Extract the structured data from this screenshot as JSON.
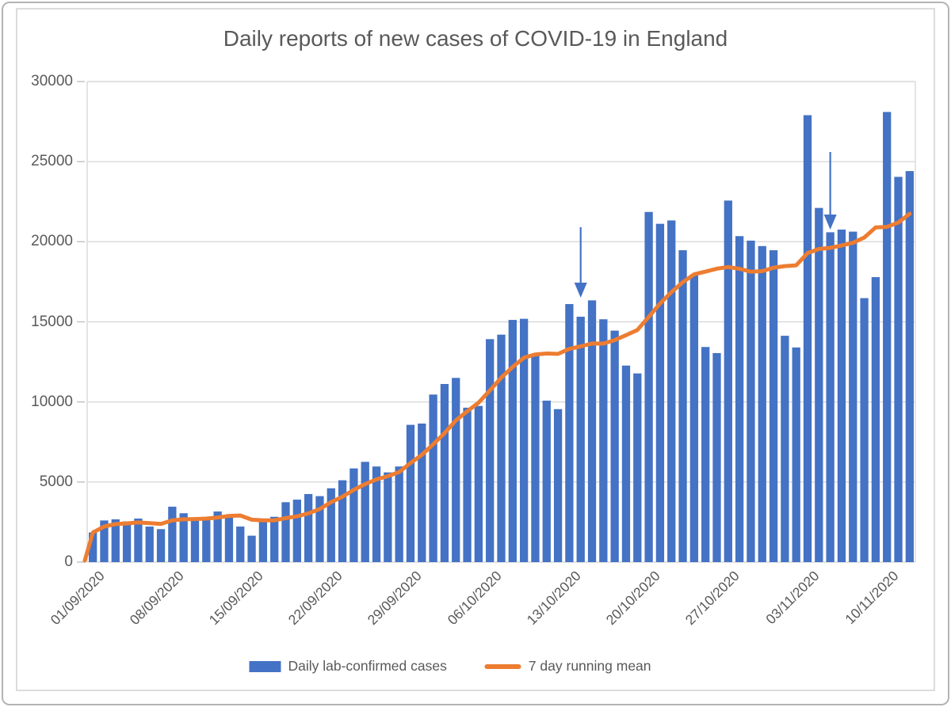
{
  "frame": {
    "outer_border_color": "#b4b4b4",
    "inner_border_color": "#dcdcdc"
  },
  "chart_data": {
    "type": "bar",
    "title": "Daily reports of new cases of COVID-19 in England",
    "xlabel": "",
    "ylabel": "",
    "ylim": [
      0,
      30000
    ],
    "y_ticks": [
      0,
      5000,
      10000,
      15000,
      20000,
      25000,
      30000
    ],
    "grid": "horizontal",
    "legend_position": "bottom",
    "x_tick_labels": [
      "01/09/2020",
      "08/09/2020",
      "15/09/2020",
      "22/09/2020",
      "29/09/2020",
      "06/10/2020",
      "13/10/2020",
      "20/10/2020",
      "27/10/2020",
      "03/11/2020",
      "10/11/2020"
    ],
    "categories": [
      "01/09/2020",
      "02/09/2020",
      "03/09/2020",
      "04/09/2020",
      "05/09/2020",
      "06/09/2020",
      "07/09/2020",
      "08/09/2020",
      "09/09/2020",
      "10/09/2020",
      "11/09/2020",
      "12/09/2020",
      "13/09/2020",
      "14/09/2020",
      "15/09/2020",
      "16/09/2020",
      "17/09/2020",
      "18/09/2020",
      "19/09/2020",
      "20/09/2020",
      "21/09/2020",
      "22/09/2020",
      "23/09/2020",
      "24/09/2020",
      "25/09/2020",
      "26/09/2020",
      "27/09/2020",
      "28/09/2020",
      "29/09/2020",
      "30/09/2020",
      "01/10/2020",
      "02/10/2020",
      "03/10/2020",
      "04/10/2020",
      "05/10/2020",
      "06/10/2020",
      "07/10/2020",
      "08/10/2020",
      "09/10/2020",
      "10/10/2020",
      "11/10/2020",
      "12/10/2020",
      "13/10/2020",
      "14/10/2020",
      "15/10/2020",
      "16/10/2020",
      "17/10/2020",
      "18/10/2020",
      "19/10/2020",
      "20/10/2020",
      "21/10/2020",
      "22/10/2020",
      "23/10/2020",
      "24/10/2020",
      "25/10/2020",
      "26/10/2020",
      "27/10/2020",
      "28/10/2020",
      "29/10/2020",
      "30/10/2020",
      "31/10/2020",
      "01/11/2020",
      "02/11/2020",
      "03/11/2020",
      "04/11/2020",
      "05/11/2020",
      "06/11/2020",
      "07/11/2020",
      "08/11/2020",
      "09/11/2020",
      "10/11/2020",
      "11/11/2020",
      "12/11/2020"
    ],
    "series": [
      {
        "name": "Daily lab-confirmed cases",
        "type": "bar",
        "color": "#4472C4",
        "values": [
          1850,
          2600,
          2670,
          2540,
          2720,
          2220,
          2060,
          3460,
          3050,
          2770,
          2770,
          3160,
          2930,
          2220,
          1650,
          2720,
          2830,
          3740,
          3900,
          4250,
          4120,
          4610,
          5110,
          5850,
          6260,
          5970,
          5600,
          5970,
          8570,
          8650,
          10460,
          11120,
          11500,
          9640,
          9750,
          13920,
          14200,
          15120,
          15190,
          12930,
          10080,
          9550,
          16110,
          15320,
          16340,
          15160,
          14450,
          12270,
          11780,
          21860,
          21120,
          21330,
          19470,
          17960,
          13430,
          13050,
          22570,
          20350,
          20070,
          19730,
          19470,
          14130,
          13400,
          27900,
          22110,
          20590,
          20760,
          20630,
          16480,
          17790,
          28100,
          24050,
          24410
        ]
      },
      {
        "name": "7 day running mean",
        "type": "line",
        "color": "#ED7D31",
        "values": [
          1850,
          2225,
          2375,
          2415,
          2475,
          2435,
          2380,
          2610,
          2675,
          2690,
          2720,
          2785,
          2885,
          2910,
          2650,
          2605,
          2610,
          2750,
          2855,
          3045,
          3315,
          3740,
          4080,
          4510,
          4870,
          5165,
          5360,
          5625,
          6190,
          6695,
          7355,
          8050,
          8840,
          9415,
          9955,
          10720,
          11515,
          12180,
          12760,
          12965,
          13025,
          13000,
          13310,
          13470,
          13645,
          13640,
          13860,
          14170,
          14490,
          15310,
          16140,
          16855,
          17470,
          17970,
          18135,
          18315,
          18420,
          18310,
          18130,
          18165,
          18380,
          18480,
          18530,
          19295,
          19545,
          19620,
          19765,
          19930,
          20265,
          20895,
          20925,
          21200,
          21745
        ]
      }
    ],
    "annotations": [
      {
        "type": "down-arrow",
        "date": "14/10/2020",
        "bar_index": 44,
        "color": "#4472C4"
      },
      {
        "type": "down-arrow",
        "date": "05/11/2020",
        "bar_index": 66,
        "color": "#4472C4"
      }
    ]
  },
  "legend": {
    "items": [
      {
        "label": "Daily lab-confirmed cases",
        "swatch": "bar",
        "color": "#4472C4"
      },
      {
        "label": "7 day running mean",
        "swatch": "line",
        "color": "#ED7D31"
      }
    ]
  },
  "style": {
    "gridline_color": "#d9d9d9",
    "tick_color": "#bfbfbf",
    "text_color": "#595959"
  }
}
